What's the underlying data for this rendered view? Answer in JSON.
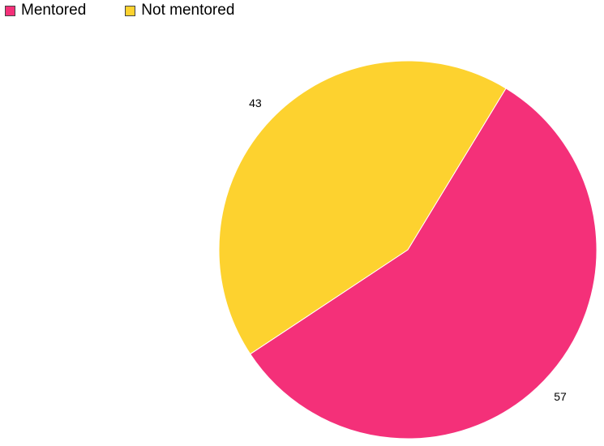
{
  "chart_data": {
    "type": "pie",
    "legend_position": "top-left",
    "series": [
      {
        "name": "Mentored",
        "value": 57,
        "label": "57",
        "color": "#f43079"
      },
      {
        "name": "Not mentored",
        "value": 43,
        "label": "43",
        "color": "#fdd22f"
      }
    ]
  }
}
